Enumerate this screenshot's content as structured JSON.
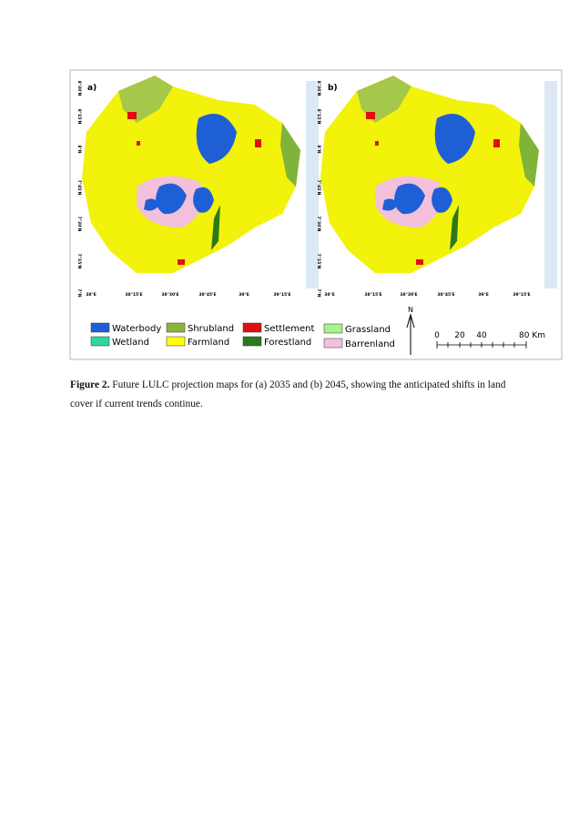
{
  "figure": {
    "panels": [
      {
        "label": "a)",
        "lat_labels": [
          "8°30'N",
          "8°15'N",
          "8°N",
          "7°45'N",
          "7°30'N",
          "7°15'N",
          "7°N"
        ],
        "lon_labels": [
          "38°E",
          "38°15'E",
          "38°30'E",
          "38°45'E",
          "39°E",
          "39°15'E"
        ]
      },
      {
        "label": "b)",
        "lat_labels": [
          "8°30'N",
          "8°15'N",
          "8°N",
          "7°45'N",
          "7°30'N",
          "7°15'N",
          "7°N"
        ],
        "lon_labels": [
          "38°E",
          "38°15'E",
          "38°30'E",
          "38°45'E",
          "39°E",
          "39°15'E"
        ]
      }
    ],
    "legend": [
      {
        "label": "Waterbody",
        "color": "#1f5fd6"
      },
      {
        "label": "Wetland",
        "color": "#2fd6a0"
      },
      {
        "label": "Shrubland",
        "color": "#8db33a"
      },
      {
        "label": "Farmland",
        "color": "#ffff00"
      },
      {
        "label": "Settlement",
        "color": "#e01010"
      },
      {
        "label": "Forestland",
        "color": "#2a7a1a"
      },
      {
        "label": "Grassland",
        "color": "#a6f28c"
      },
      {
        "label": "Barrenland",
        "color": "#f3c0dc"
      }
    ],
    "north_label": "N",
    "scale_bar": {
      "labels": [
        "0",
        "20",
        "40",
        "80 Km"
      ]
    }
  },
  "caption": {
    "label": "Figure 2.",
    "text": " Future LULC projection maps for (a) 2035 and (b) 2045, showing the anticipated shifts in land cover if current trends continue."
  }
}
